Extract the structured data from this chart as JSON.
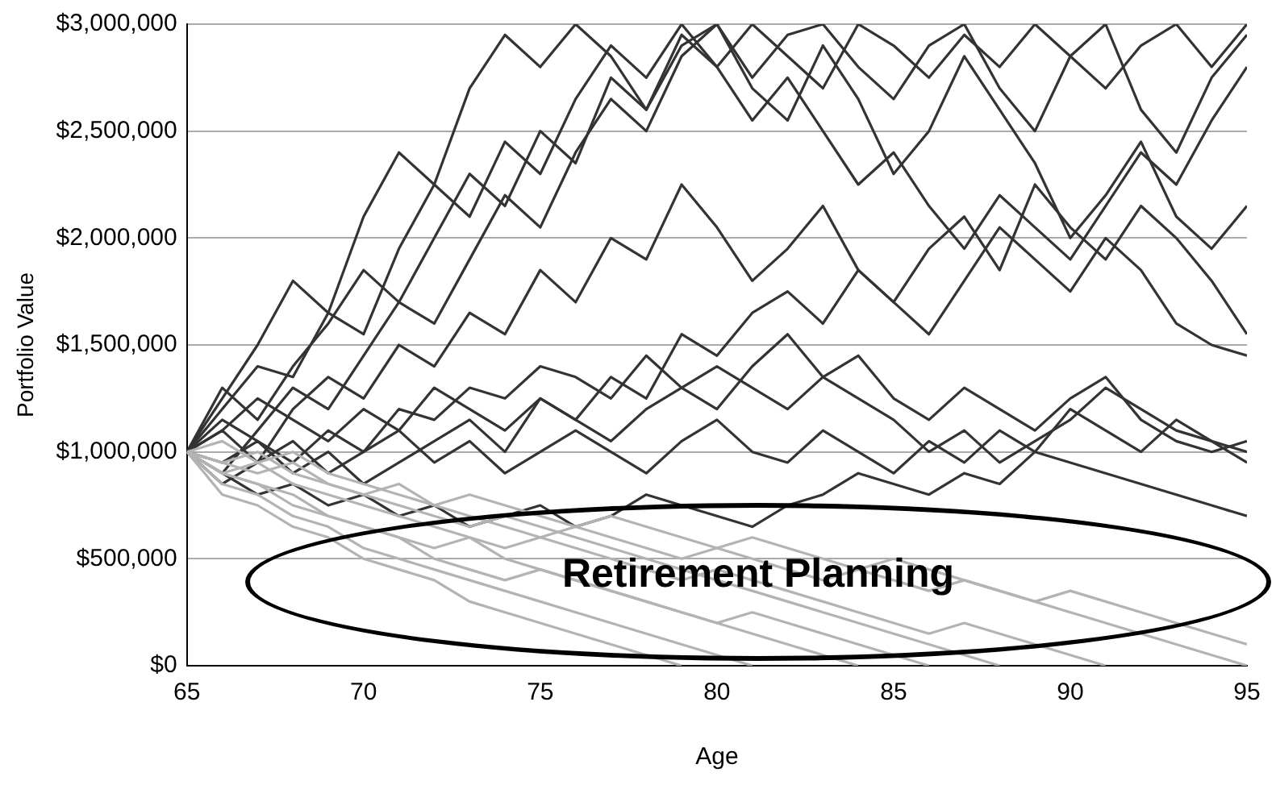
{
  "chart_data": {
    "type": "line",
    "xlabel": "Age",
    "ylabel": "Portfolio Value",
    "annotations": [
      "Retirement Planning"
    ],
    "x": [
      65,
      66,
      67,
      68,
      69,
      70,
      71,
      72,
      73,
      74,
      75,
      76,
      77,
      78,
      79,
      80,
      81,
      82,
      83,
      84,
      85,
      86,
      87,
      88,
      89,
      90,
      91,
      92,
      93,
      94,
      95
    ],
    "xlim": [
      65,
      95
    ],
    "xticks": [
      65,
      70,
      75,
      80,
      85,
      90,
      95
    ],
    "ylim": [
      0,
      3000000
    ],
    "yticks": [
      {
        "value": 0,
        "label": "$0"
      },
      {
        "value": 500000,
        "label": "$500,000"
      },
      {
        "value": 1000000,
        "label": "$1,000,000"
      },
      {
        "value": 1500000,
        "label": "$1,500,000"
      },
      {
        "value": 2000000,
        "label": "$2,000,000"
      },
      {
        "value": 2500000,
        "label": "$2,500,000"
      },
      {
        "value": 3000000,
        "label": "$3,000,000"
      }
    ],
    "grid": "y",
    "legend": false,
    "marker": "none",
    "line_style": "solid",
    "series": [
      {
        "color": "#b3b3b3",
        "values": [
          1000000,
          900000,
          850000,
          750000,
          700000,
          650000,
          600000,
          550000,
          600000,
          500000,
          450000,
          400000,
          350000,
          300000,
          250000,
          200000,
          150000,
          100000,
          50000,
          0,
          null,
          null,
          null,
          null,
          null,
          null,
          null,
          null,
          null,
          null,
          null
        ]
      },
      {
        "color": "#b3b3b3",
        "values": [
          1000000,
          950000,
          1000000,
          900000,
          850000,
          800000,
          750000,
          700000,
          650000,
          700000,
          650000,
          600000,
          550000,
          500000,
          450000,
          400000,
          350000,
          300000,
          250000,
          200000,
          150000,
          100000,
          50000,
          0,
          null,
          null,
          null,
          null,
          null,
          null,
          null
        ]
      },
      {
        "color": "#b3b3b3",
        "values": [
          1000000,
          850000,
          800000,
          700000,
          650000,
          550000,
          500000,
          450000,
          400000,
          350000,
          300000,
          250000,
          200000,
          150000,
          100000,
          50000,
          0,
          null,
          null,
          null,
          null,
          null,
          null,
          null,
          null,
          null,
          null,
          null,
          null,
          null,
          null
        ]
      },
      {
        "color": "#b3b3b3",
        "values": [
          1000000,
          1050000,
          950000,
          1000000,
          900000,
          850000,
          800000,
          750000,
          800000,
          750000,
          700000,
          650000,
          700000,
          650000,
          600000,
          550000,
          600000,
          550000,
          500000,
          450000,
          500000,
          450000,
          400000,
          350000,
          300000,
          250000,
          200000,
          150000,
          100000,
          50000,
          0
        ]
      },
      {
        "color": "#b3b3b3",
        "values": [
          1000000,
          900000,
          950000,
          850000,
          800000,
          750000,
          700000,
          650000,
          600000,
          550000,
          600000,
          550000,
          500000,
          450000,
          400000,
          450000,
          400000,
          350000,
          300000,
          250000,
          200000,
          150000,
          200000,
          150000,
          100000,
          50000,
          0,
          null,
          null,
          null,
          null
        ]
      },
      {
        "color": "#b3b3b3",
        "values": [
          1000000,
          800000,
          750000,
          650000,
          600000,
          500000,
          450000,
          400000,
          300000,
          250000,
          200000,
          150000,
          100000,
          50000,
          0,
          null,
          null,
          null,
          null,
          null,
          null,
          null,
          null,
          null,
          null,
          null,
          null,
          null,
          null,
          null,
          null
        ]
      },
      {
        "color": "#b3b3b3",
        "values": [
          1000000,
          950000,
          900000,
          950000,
          850000,
          800000,
          850000,
          750000,
          700000,
          650000,
          600000,
          650000,
          600000,
          550000,
          500000,
          550000,
          500000,
          450000,
          400000,
          450000,
          400000,
          350000,
          400000,
          350000,
          300000,
          350000,
          300000,
          250000,
          200000,
          150000,
          100000
        ]
      },
      {
        "color": "#b3b3b3",
        "values": [
          1000000,
          900000,
          850000,
          800000,
          700000,
          650000,
          600000,
          500000,
          450000,
          400000,
          450000,
          400000,
          350000,
          300000,
          250000,
          200000,
          250000,
          200000,
          150000,
          100000,
          50000,
          0,
          null,
          null,
          null,
          null,
          null,
          null,
          null,
          null,
          null
        ]
      },
      {
        "color": "#333333",
        "values": [
          1000000,
          1250000,
          1500000,
          1800000,
          1650000,
          2100000,
          2400000,
          2250000,
          2700000,
          2950000,
          2800000,
          3000000,
          2850000,
          2600000,
          2900000,
          3000000,
          2750000,
          2950000,
          3000000,
          2800000,
          2650000,
          2900000,
          3000000,
          2700000,
          2500000,
          2850000,
          3000000,
          2600000,
          2400000,
          2750000,
          2950000
        ]
      },
      {
        "color": "#333333",
        "values": [
          1000000,
          900000,
          1100000,
          1300000,
          1200000,
          1450000,
          1700000,
          1600000,
          1900000,
          2200000,
          2050000,
          2400000,
          2650000,
          2500000,
          2850000,
          3000000,
          2700000,
          2550000,
          2900000,
          2650000,
          2300000,
          2500000,
          2850000,
          2600000,
          2350000,
          2000000,
          2200000,
          2450000,
          2100000,
          1950000,
          2150000
        ]
      },
      {
        "color": "#333333",
        "values": [
          1000000,
          1100000,
          950000,
          1200000,
          1350000,
          1250000,
          1500000,
          1400000,
          1650000,
          1550000,
          1850000,
          1700000,
          2000000,
          1900000,
          2250000,
          2050000,
          1800000,
          1950000,
          2150000,
          1850000,
          1700000,
          1550000,
          1800000,
          2050000,
          1900000,
          1750000,
          2000000,
          1850000,
          1600000,
          1500000,
          1450000
        ]
      },
      {
        "color": "#333333",
        "values": [
          1000000,
          1150000,
          1050000,
          950000,
          1100000,
          1000000,
          1200000,
          1150000,
          1300000,
          1250000,
          1400000,
          1350000,
          1250000,
          1450000,
          1300000,
          1200000,
          1400000,
          1550000,
          1350000,
          1450000,
          1250000,
          1150000,
          1300000,
          1200000,
          1100000,
          1250000,
          1350000,
          1150000,
          1050000,
          1000000,
          1050000
        ]
      },
      {
        "color": "#333333",
        "values": [
          1000000,
          850000,
          950000,
          1050000,
          900000,
          1000000,
          1100000,
          950000,
          1050000,
          900000,
          1000000,
          1100000,
          1000000,
          900000,
          1050000,
          1150000,
          1000000,
          950000,
          1100000,
          1000000,
          900000,
          1050000,
          950000,
          1100000,
          1000000,
          1200000,
          1100000,
          1000000,
          1150000,
          1050000,
          950000
        ]
      },
      {
        "color": "#333333",
        "values": [
          1000000,
          1300000,
          1150000,
          1400000,
          1600000,
          1850000,
          1700000,
          2000000,
          2300000,
          2150000,
          2500000,
          2350000,
          2750000,
          2600000,
          2950000,
          2800000,
          3000000,
          2850000,
          2700000,
          3000000,
          2900000,
          2750000,
          2950000,
          2800000,
          3000000,
          2850000,
          2700000,
          2900000,
          3000000,
          2800000,
          3000000
        ]
      },
      {
        "color": "#333333",
        "values": [
          1000000,
          950000,
          1050000,
          900000,
          1000000,
          850000,
          950000,
          1050000,
          1150000,
          1000000,
          1250000,
          1150000,
          1350000,
          1250000,
          1550000,
          1450000,
          1650000,
          1750000,
          1600000,
          1850000,
          1700000,
          1950000,
          2100000,
          1850000,
          2250000,
          2050000,
          1900000,
          2150000,
          2000000,
          1800000,
          1550000
        ]
      },
      {
        "color": "#333333",
        "values": [
          1000000,
          1200000,
          1400000,
          1350000,
          1650000,
          1550000,
          1950000,
          2250000,
          2100000,
          2450000,
          2300000,
          2650000,
          2900000,
          2750000,
          3000000,
          2800000,
          2550000,
          2750000,
          2500000,
          2250000,
          2400000,
          2150000,
          1950000,
          2200000,
          2050000,
          1900000,
          2150000,
          2400000,
          2250000,
          2550000,
          2800000
        ]
      },
      {
        "color": "#333333",
        "values": [
          1000000,
          900000,
          800000,
          850000,
          750000,
          800000,
          700000,
          750000,
          650000,
          700000,
          750000,
          650000,
          700000,
          800000,
          750000,
          700000,
          650000,
          750000,
          800000,
          900000,
          850000,
          800000,
          900000,
          850000,
          1000000,
          950000,
          900000,
          850000,
          800000,
          750000,
          700000
        ]
      },
      {
        "color": "#333333",
        "values": [
          1000000,
          1100000,
          1250000,
          1150000,
          1050000,
          1200000,
          1100000,
          1300000,
          1200000,
          1100000,
          1250000,
          1150000,
          1050000,
          1200000,
          1300000,
          1400000,
          1300000,
          1200000,
          1350000,
          1250000,
          1150000,
          1000000,
          1100000,
          950000,
          1050000,
          1150000,
          1300000,
          1200000,
          1100000,
          1050000,
          1000000
        ]
      }
    ]
  }
}
